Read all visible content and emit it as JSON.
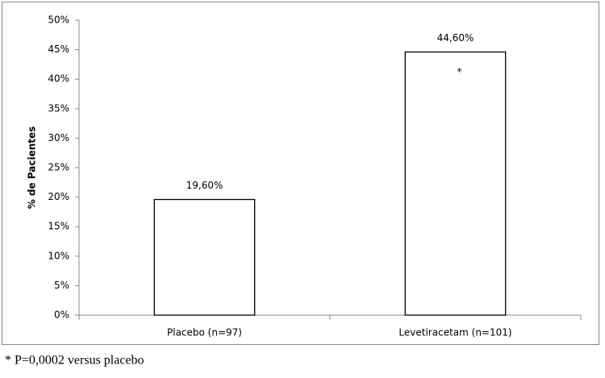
{
  "chart_data": {
    "type": "bar",
    "y_label": "% de Pacientes",
    "categories": [
      "Placebo (n=97)",
      "Levetiracetam (n=101)"
    ],
    "values": [
      19.6,
      44.6
    ],
    "value_labels": [
      "19,60%",
      "44,60%"
    ],
    "color": "#ffffff",
    "annotation": "*",
    "footnote": "* P=0,0002 versus placebo",
    "ylim": [
      0,
      50
    ],
    "yticks": [
      {
        "value": 0,
        "label": "0%"
      },
      {
        "value": 5,
        "label": "5%"
      },
      {
        "value": 10,
        "label": "10%"
      },
      {
        "value": 15,
        "label": "15%"
      },
      {
        "value": 20,
        "label": "20%"
      },
      {
        "value": 25,
        "label": "25%"
      },
      {
        "value": 30,
        "label": "30%"
      },
      {
        "value": 35,
        "label": "35%"
      },
      {
        "value": 40,
        "label": "40%"
      },
      {
        "value": 45,
        "label": "45%"
      },
      {
        "value": 50,
        "label": "50%"
      }
    ],
    "grid": false
  }
}
